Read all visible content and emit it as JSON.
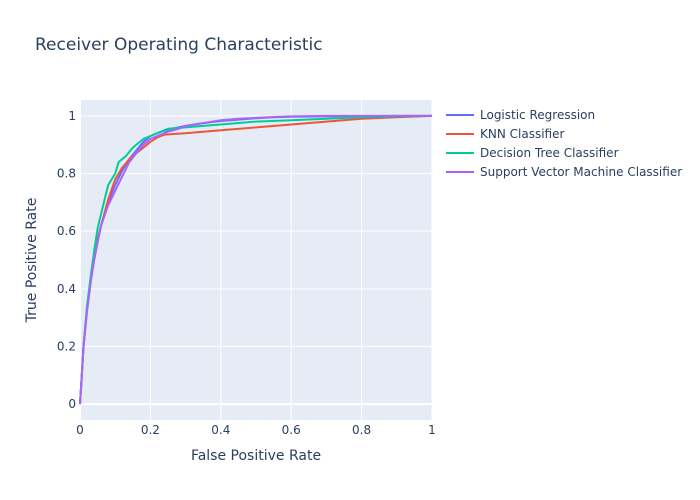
{
  "chart_data": {
    "type": "line",
    "title": "Receiver Operating Characteristic",
    "xlabel": "False Positive Rate",
    "ylabel": "True Positive Rate",
    "xlim": [
      0,
      1
    ],
    "ylim": [
      -0.055,
      1.055
    ],
    "xticks": [
      0,
      0.2,
      0.4,
      0.6,
      0.8,
      1
    ],
    "xtick_labels": [
      "0",
      "0.2",
      "0.4",
      "0.6",
      "0.8",
      "1"
    ],
    "yticks": [
      0,
      0.2,
      0.4,
      0.6,
      0.8,
      1
    ],
    "ytick_labels": [
      "0",
      "0.2",
      "0.4",
      "0.6",
      "0.8",
      "1"
    ],
    "grid": true,
    "legend_position": "right",
    "plot_background": "#e5ecf6",
    "series": [
      {
        "name": "Logistic Regression",
        "color": "#636efa",
        "x": [
          0,
          0.005,
          0.01,
          0.02,
          0.03,
          0.04,
          0.05,
          0.06,
          0.08,
          0.1,
          0.12,
          0.14,
          0.16,
          0.18,
          0.2,
          0.23,
          0.26,
          0.3,
          0.35,
          0.4,
          0.45,
          0.5,
          0.55,
          0.6,
          0.7,
          0.8,
          0.9,
          1
        ],
        "y": [
          0,
          0.1,
          0.2,
          0.33,
          0.43,
          0.5,
          0.57,
          0.62,
          0.7,
          0.76,
          0.81,
          0.85,
          0.88,
          0.91,
          0.93,
          0.945,
          0.955,
          0.965,
          0.975,
          0.982,
          0.987,
          0.992,
          0.995,
          0.997,
          0.998,
          0.999,
          1.0,
          1.0
        ]
      },
      {
        "name": "KNN Classifier",
        "color": "#ef553b",
        "x": [
          0,
          0.005,
          0.01,
          0.02,
          0.03,
          0.04,
          0.05,
          0.06,
          0.08,
          0.1,
          0.12,
          0.14,
          0.16,
          0.18,
          0.2,
          0.22,
          0.24,
          0.3,
          0.4,
          0.5,
          0.6,
          0.7,
          0.8,
          0.9,
          1
        ],
        "y": [
          0,
          0.1,
          0.2,
          0.33,
          0.43,
          0.5,
          0.57,
          0.62,
          0.71,
          0.78,
          0.82,
          0.85,
          0.87,
          0.89,
          0.91,
          0.925,
          0.935,
          0.94,
          0.95,
          0.96,
          0.97,
          0.98,
          0.99,
          0.995,
          1.0
        ]
      },
      {
        "name": "Decision Tree Classifier",
        "color": "#00cc96",
        "x": [
          0,
          0.005,
          0.01,
          0.02,
          0.03,
          0.04,
          0.05,
          0.06,
          0.07,
          0.08,
          0.1,
          0.11,
          0.13,
          0.15,
          0.18,
          0.2,
          0.25,
          0.3,
          0.35,
          0.4,
          0.5,
          0.6,
          0.7,
          0.8,
          0.9,
          1
        ],
        "y": [
          0,
          0.1,
          0.2,
          0.34,
          0.44,
          0.53,
          0.61,
          0.66,
          0.71,
          0.76,
          0.8,
          0.84,
          0.86,
          0.89,
          0.92,
          0.93,
          0.955,
          0.96,
          0.965,
          0.97,
          0.98,
          0.985,
          0.99,
          0.995,
          0.998,
          1.0
        ]
      },
      {
        "name": "Support Vector Machine Classifier",
        "color": "#ab63fa",
        "x": [
          0,
          0.005,
          0.01,
          0.02,
          0.03,
          0.04,
          0.05,
          0.06,
          0.08,
          0.1,
          0.12,
          0.14,
          0.16,
          0.18,
          0.2,
          0.22,
          0.25,
          0.28,
          0.3,
          0.35,
          0.4,
          0.45,
          0.5,
          0.55,
          0.6,
          0.65,
          0.7,
          0.8,
          0.9,
          1
        ],
        "y": [
          0,
          0.1,
          0.2,
          0.32,
          0.42,
          0.5,
          0.56,
          0.62,
          0.69,
          0.74,
          0.79,
          0.84,
          0.87,
          0.9,
          0.92,
          0.93,
          0.945,
          0.955,
          0.965,
          0.975,
          0.985,
          0.99,
          0.993,
          0.996,
          0.998,
          0.999,
          1.0,
          1.0,
          1.0,
          1.0
        ]
      }
    ]
  }
}
